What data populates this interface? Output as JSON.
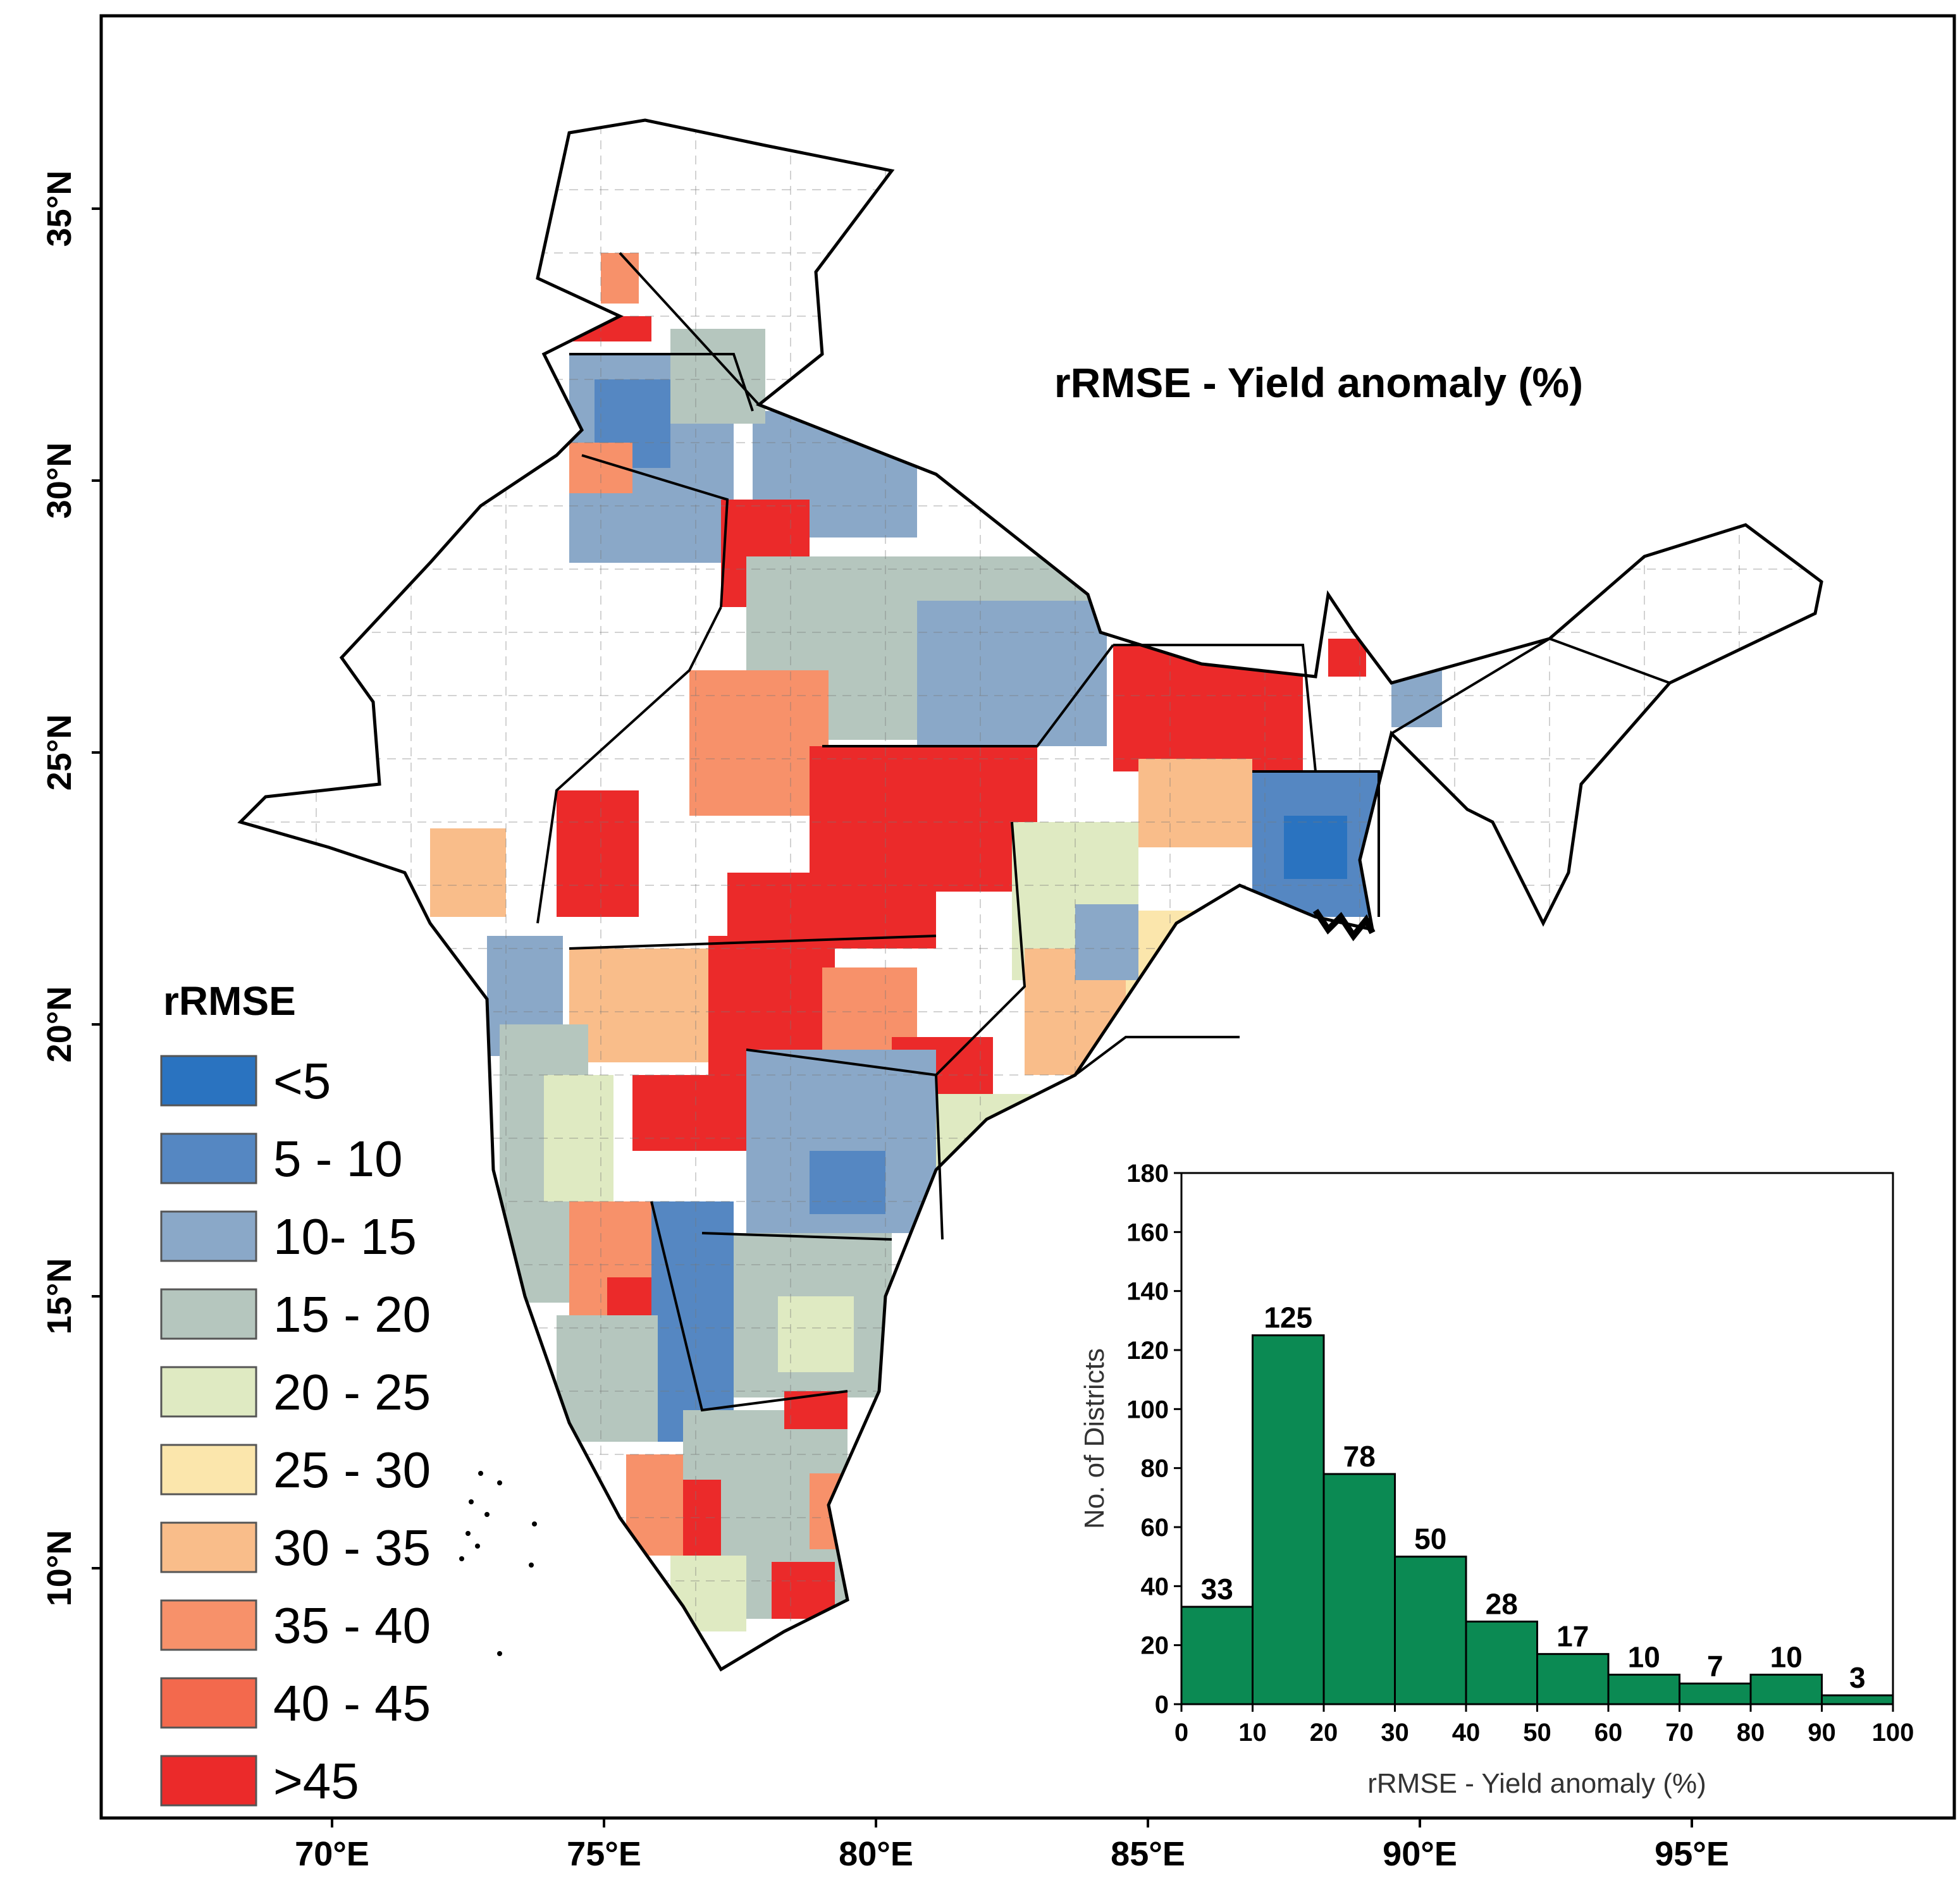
{
  "map": {
    "title": "rRMSE - Yield anomaly (%)",
    "lat_labels": [
      "35°N",
      "30°N",
      "25°N",
      "20°N",
      "15°N",
      "10°N"
    ],
    "lon_labels": [
      "70°E",
      "75°E",
      "80°E",
      "85°E",
      "90°E",
      "95°E"
    ],
    "region_class_colors": {
      "none": "#ffffff",
      "lt5": "#2a73c0",
      "c5_10": "#5587c2",
      "c10_15": "#8aa8c8",
      "c15_20": "#b5c6be",
      "c20_25": "#dfeac2",
      "c25_30": "#fbe6ac",
      "c30_35": "#f9bd8a",
      "c35_40": "#f7916a",
      "c40_45": "#f3694d",
      "gt45": "#eb2a2a"
    }
  },
  "legend": {
    "title": "rRMSE",
    "items": [
      {
        "label": "<5",
        "color": "#2a73c0"
      },
      {
        "label": "5 - 10",
        "color": "#5587c2"
      },
      {
        "label": "10- 15",
        "color": "#8aa8c8"
      },
      {
        "label": "15 - 20",
        "color": "#b5c6be"
      },
      {
        "label": "20 - 25",
        "color": "#dfeac2"
      },
      {
        "label": "25 - 30",
        "color": "#fbe6ac"
      },
      {
        "label": "30 - 35",
        "color": "#f9bd8a"
      },
      {
        "label": "35 - 40",
        "color": "#f7916a"
      },
      {
        "label": "40 - 45",
        "color": "#f3694d"
      },
      {
        "label": ">45",
        "color": "#eb2a2a"
      }
    ]
  },
  "chart_data": {
    "type": "bar",
    "title": "",
    "xlabel": "rRMSE - Yield anomaly (%)",
    "ylabel": "No. of Districts",
    "bin_edges": [
      0,
      10,
      20,
      30,
      40,
      50,
      60,
      70,
      80,
      90,
      100
    ],
    "x_ticks": [
      "0",
      "10",
      "20",
      "30",
      "40",
      "50",
      "60",
      "70",
      "80",
      "90",
      "100"
    ],
    "y_ticks": [
      "0",
      "20",
      "40",
      "60",
      "80",
      "100",
      "120",
      "140",
      "160",
      "180"
    ],
    "values": [
      33,
      125,
      78,
      50,
      28,
      17,
      10,
      7,
      10,
      3
    ],
    "value_labels": [
      "33",
      "125",
      "78",
      "50",
      "28",
      "17",
      "10",
      "7",
      "10",
      "3"
    ],
    "xlim": [
      0,
      100
    ],
    "ylim": [
      0,
      180
    ],
    "bar_color": "#0b8a53"
  }
}
